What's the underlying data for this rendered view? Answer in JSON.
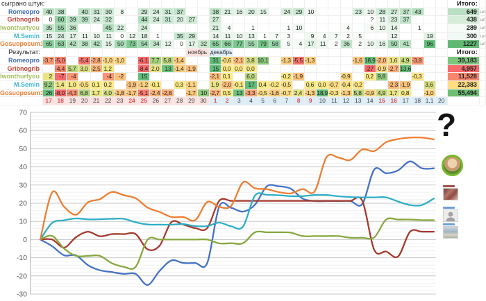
{
  "sheet": {
    "played_header": "сыграно штук:",
    "result_header": "Результат:",
    "total_header": "Итого:",
    "unit": "шт",
    "months": {
      "november": "ноябрь",
      "december": "декабрь"
    },
    "unknown_mark": "?"
  },
  "dates": [
    {
      "label": "17",
      "month": "nov",
      "weekend": true
    },
    {
      "label": "18",
      "month": "nov",
      "weekend": true
    },
    {
      "label": "19",
      "month": "nov",
      "weekend": false
    },
    {
      "label": "20",
      "month": "nov",
      "weekend": false
    },
    {
      "label": "21",
      "month": "nov",
      "weekend": false
    },
    {
      "label": "22",
      "month": "nov",
      "weekend": false
    },
    {
      "label": "23",
      "month": "nov",
      "weekend": false
    },
    {
      "label": "24",
      "month": "nov",
      "weekend": true
    },
    {
      "label": "25",
      "month": "nov",
      "weekend": true
    },
    {
      "label": "26",
      "month": "nov",
      "weekend": false
    },
    {
      "label": "27",
      "month": "nov",
      "weekend": false
    },
    {
      "label": "28",
      "month": "nov",
      "weekend": false
    },
    {
      "label": "29",
      "month": "nov",
      "weekend": false
    },
    {
      "label": "30",
      "month": "nov",
      "weekend": false
    },
    {
      "label": "1",
      "month": "dec",
      "weekend": true
    },
    {
      "label": "2",
      "month": "dec",
      "weekend": true
    },
    {
      "label": "3",
      "month": "dec",
      "weekend": false
    },
    {
      "label": "4",
      "month": "dec",
      "weekend": false
    },
    {
      "label": "5",
      "month": "dec",
      "weekend": false
    },
    {
      "label": "6",
      "month": "dec",
      "weekend": false
    },
    {
      "label": "7",
      "month": "dec",
      "weekend": false
    },
    {
      "label": "8",
      "month": "dec",
      "weekend": true
    },
    {
      "label": "9",
      "month": "dec",
      "weekend": true
    },
    {
      "label": "10",
      "month": "dec",
      "weekend": false
    },
    {
      "label": "11",
      "month": "dec",
      "weekend": false
    },
    {
      "label": "12",
      "month": "dec",
      "weekend": false
    },
    {
      "label": "13",
      "month": "dec",
      "weekend": false
    },
    {
      "label": "14",
      "month": "dec",
      "weekend": false
    },
    {
      "label": "15",
      "month": "dec",
      "weekend": true
    },
    {
      "label": "16",
      "month": "dec",
      "weekend": true
    },
    {
      "label": "17",
      "month": "dec",
      "weekend": false
    },
    {
      "label": "18",
      "month": "dec",
      "weekend": false
    },
    {
      "label": "1,1",
      "month": "dec",
      "weekend": false
    },
    {
      "label": "20",
      "month": "dec",
      "weekend": false
    }
  ],
  "players": [
    {
      "name": "Romeopro",
      "name_color": "#3f6cb5",
      "line_color": "#4472C4",
      "played": [
        "40",
        "38",
        "",
        "40",
        "31",
        "30",
        "8",
        "",
        "29",
        "24",
        "31",
        "37",
        "",
        "",
        "38",
        "21",
        "16",
        "20",
        "15",
        "",
        "24",
        "29",
        "10",
        "",
        "",
        "",
        "23",
        "10",
        "28",
        "27",
        "37",
        "43",
        "",
        ""
      ],
      "results": [
        "-3,7",
        "-5,0",
        "",
        "-5,4",
        "-2,8",
        "-1,0",
        "-1,0",
        "",
        "-6,1",
        "7,7",
        "5,8",
        "-1,4",
        "",
        "",
        "31",
        "-0,6",
        "-2,1",
        "3,8",
        "10,1",
        "",
        "-1,3",
        "-5,5",
        "-1,3",
        "",
        "",
        "",
        "-1,6",
        "18,9",
        "-2,0",
        "1,6",
        "4,9",
        "-3,8",
        "",
        ""
      ],
      "played_total": "649",
      "played_total_bg": "#b9e0c2",
      "result_total": "39,183",
      "result_total_bg": "#7dc57d"
    },
    {
      "name": "Gribnogrib",
      "name_color": "#bf4034",
      "line_color": "#A6392C",
      "played": [
        "0",
        "60",
        "39",
        "39",
        "24",
        "32",
        "",
        "",
        "44",
        "24",
        "31",
        "20",
        "27",
        "",
        "27",
        "",
        "",
        "",
        "",
        "",
        "",
        "",
        "",
        "",
        "",
        "",
        "",
        "?",
        "11",
        "23",
        "37",
        "",
        "",
        ""
      ],
      "results": [
        "",
        "-4,4",
        "5,7",
        "3,0",
        "-2,5",
        "1,2",
        "",
        "",
        "-8,4",
        "2,0",
        "13",
        "-1,4",
        "-1,9",
        "",
        "15",
        "0,0",
        "0,0",
        "0,0",
        "",
        "",
        "",
        "",
        "",
        "",
        "",
        "",
        "",
        "-27",
        "-0,9",
        "-2,7",
        "13,6",
        "",
        "",
        ""
      ],
      "played_total": "438",
      "played_total_bg": "#d6edda",
      "result_total": "4,957",
      "result_total_bg": "#f8696b"
    },
    {
      "name": "Iwonthurtyou",
      "name_color": "#a4bd5e",
      "line_color": "#86A73E",
      "played": [
        "35",
        "55",
        "36",
        "",
        "",
        "45",
        "22",
        "",
        "24",
        "",
        "",
        "",
        "",
        "",
        "21",
        "4",
        "",
        "1",
        "",
        "",
        "1",
        "10",
        "",
        "",
        "",
        "4",
        "",
        "6",
        "10",
        "14",
        "",
        "1",
        "",
        ""
      ],
      "results": [
        "2",
        "-7",
        "-4",
        "",
        "",
        "-4",
        "-2",
        "",
        "15",
        "",
        "",
        "",
        "",
        "",
        "-2,1",
        "0,1",
        "",
        "6,0",
        "",
        "",
        "-0,2",
        "-1,9",
        "",
        "",
        "",
        "-0,9",
        "",
        "0,2",
        "9,8",
        "",
        "",
        "-0,3",
        "",
        ""
      ],
      "played_total": "289",
      "played_total_bg": "#f6fbf8",
      "result_total": "11,528",
      "result_total_bg": "#f8876d"
    },
    {
      "name": "M.Semin",
      "name_color": "#3fb6d3",
      "line_color": "#2EAEC6",
      "played": [
        "15",
        "24",
        "17",
        "11",
        "10",
        "11",
        "0",
        "12",
        "18",
        "1",
        "",
        "35",
        "29",
        "",
        "14",
        "11",
        "10",
        "13",
        "1",
        "7",
        "3",
        "",
        "9",
        "4",
        "7",
        "2",
        "5",
        "",
        "",
        "12",
        "",
        "",
        "19",
        ""
      ],
      "results": [
        "9,2",
        "1,4",
        "1,0",
        "-0,5",
        "0,1",
        "0,2",
        "",
        "-1,9",
        "-1,2",
        "-0,1",
        "",
        "0,3",
        "-1,1",
        "",
        "1,9",
        "-2,0",
        "-0,1",
        "17",
        "0,4",
        "-0,2",
        "-0,5",
        "",
        "0,6",
        "0,0",
        "-0,7",
        "-0,4",
        "-0,2",
        "",
        "",
        "-2,3",
        "-1,9",
        "",
        "3,6",
        ""
      ],
      "played_total": "300",
      "played_total_bg": "#f1faf4",
      "result_total": "22,383",
      "result_total_bg": "#fedd81"
    },
    {
      "name": "Gosuoposum1",
      "name_color": "#ed7d31",
      "line_color": "#ED7D31",
      "played": [
        "65",
        "63",
        "42",
        "38",
        "42",
        "15",
        "50",
        "73",
        "54",
        "34",
        "12",
        "0",
        "17",
        "32",
        "65",
        "66",
        "77",
        "55",
        "79",
        "58",
        "5",
        "4",
        "17",
        "11",
        "2",
        "36",
        "2",
        "10",
        "16",
        "50",
        "41",
        "",
        "96",
        ""
      ],
      "results": [
        "26",
        "-8,0",
        "-4,3",
        "6,8",
        "1,7",
        "4,0",
        "-1,8",
        "-1,7",
        "-5,1",
        "-2,4",
        "-2,8",
        "",
        "-1,7",
        "10",
        "-2,7",
        "0,5",
        "13",
        "-3,3",
        "-0,5",
        "-1,6",
        "-0,7",
        "2,4",
        "-1,3",
        "18,9",
        "-0,3",
        "-1,3",
        "5,8",
        "-0,9",
        "4,9",
        "1,7",
        "0,8",
        "",
        "-1,0",
        ""
      ],
      "played_total": "1227",
      "played_total_bg": "#5fb973",
      "result_total": "55,494",
      "result_total_bg": "#6cbf74"
    }
  ],
  "chart_data": {
    "type": "line",
    "title": "",
    "x_labels": [
      "17",
      "18",
      "19",
      "20",
      "21",
      "22",
      "23",
      "24",
      "25",
      "26",
      "27",
      "28",
      "29",
      "30",
      "1",
      "2",
      "3",
      "4",
      "5",
      "6",
      "7",
      "8",
      "9",
      "10",
      "11",
      "12",
      "13",
      "14",
      "15",
      "16",
      "17",
      "18",
      "1,1",
      "20"
    ],
    "ylim": [
      -30,
      70
    ],
    "y_ticks": [
      70,
      60,
      50,
      40,
      30,
      20,
      10,
      0,
      -10,
      -20,
      -30
    ],
    "grid": "horizontal, major every 10, minor every 2",
    "legend_position": "none",
    "plot_rule": "point k = cumulative sum of daily results through previous column, first point 0",
    "series": [
      {
        "name": "Romeopro",
        "color": "#4472C4",
        "daily": [
          -3.7,
          -5,
          null,
          -5.4,
          -2.8,
          -1,
          -1,
          null,
          -6.1,
          7.7,
          5.8,
          -1.4,
          null,
          null,
          31,
          -0.6,
          -2.1,
          3.8,
          10.1,
          null,
          -1.3,
          -5.5,
          -1.3,
          null,
          null,
          null,
          -1.6,
          18.9,
          -2,
          1.6,
          4.9,
          -3.8,
          null,
          null
        ]
      },
      {
        "name": "Gribnogrib",
        "color": "#A6392C",
        "daily": [
          null,
          -4.4,
          5.7,
          3,
          -2.5,
          1.2,
          null,
          null,
          -8.4,
          2,
          13,
          -1.4,
          -1.9,
          null,
          15,
          0,
          0,
          0,
          null,
          null,
          null,
          null,
          null,
          null,
          null,
          null,
          null,
          -27,
          -0.9,
          -2.7,
          13.6,
          null,
          null,
          null
        ]
      },
      {
        "name": "Iwonthurtyou",
        "color": "#86A73E",
        "daily": [
          2,
          -7,
          -4,
          null,
          null,
          -4,
          -2,
          null,
          15,
          null,
          null,
          null,
          null,
          null,
          -2.1,
          0.1,
          null,
          6,
          null,
          null,
          -0.2,
          -1.9,
          null,
          null,
          null,
          -0.9,
          null,
          0.2,
          9.8,
          null,
          null,
          -0.3,
          null,
          null
        ]
      },
      {
        "name": "M.Semin",
        "color": "#2EAEC6",
        "daily": [
          9.2,
          1.4,
          1,
          -0.5,
          0.1,
          0.2,
          null,
          -1.9,
          -1.2,
          -0.1,
          null,
          0.3,
          -1.1,
          null,
          1.9,
          -2,
          -0.1,
          17,
          0.4,
          -0.2,
          -0.5,
          null,
          0.6,
          0,
          -0.7,
          -0.4,
          -0.2,
          null,
          null,
          -2.3,
          -1.9,
          null,
          3.6,
          null
        ]
      },
      {
        "name": "Gosuoposum1",
        "color": "#ED7D31",
        "daily": [
          26,
          -8,
          -4.3,
          6.8,
          1.7,
          4,
          -1.8,
          -1.7,
          -5.1,
          -2.4,
          -2.8,
          null,
          -1.7,
          10,
          -2.7,
          0.5,
          13,
          -3.3,
          -0.5,
          -1.6,
          -0.7,
          2.4,
          -1.3,
          18.9,
          -0.3,
          -1.3,
          5.8,
          -0.9,
          4.9,
          1.7,
          0.8,
          null,
          -1,
          null
        ]
      }
    ]
  },
  "annotations": {
    "question_mark": "?",
    "avatars": [
      "avatar-romeopro",
      "avatar-gribnogrib",
      "avatar-msemin",
      "avatar-gosuoposum1"
    ]
  },
  "colors": {
    "nov_bg": "#fbe2e0",
    "dec_bg": "#dcedf8",
    "weekend_red": "#e04b4b",
    "scale_green": "#63be7b",
    "scale_yellow": "#ffeb84",
    "scale_red": "#f8696b"
  }
}
